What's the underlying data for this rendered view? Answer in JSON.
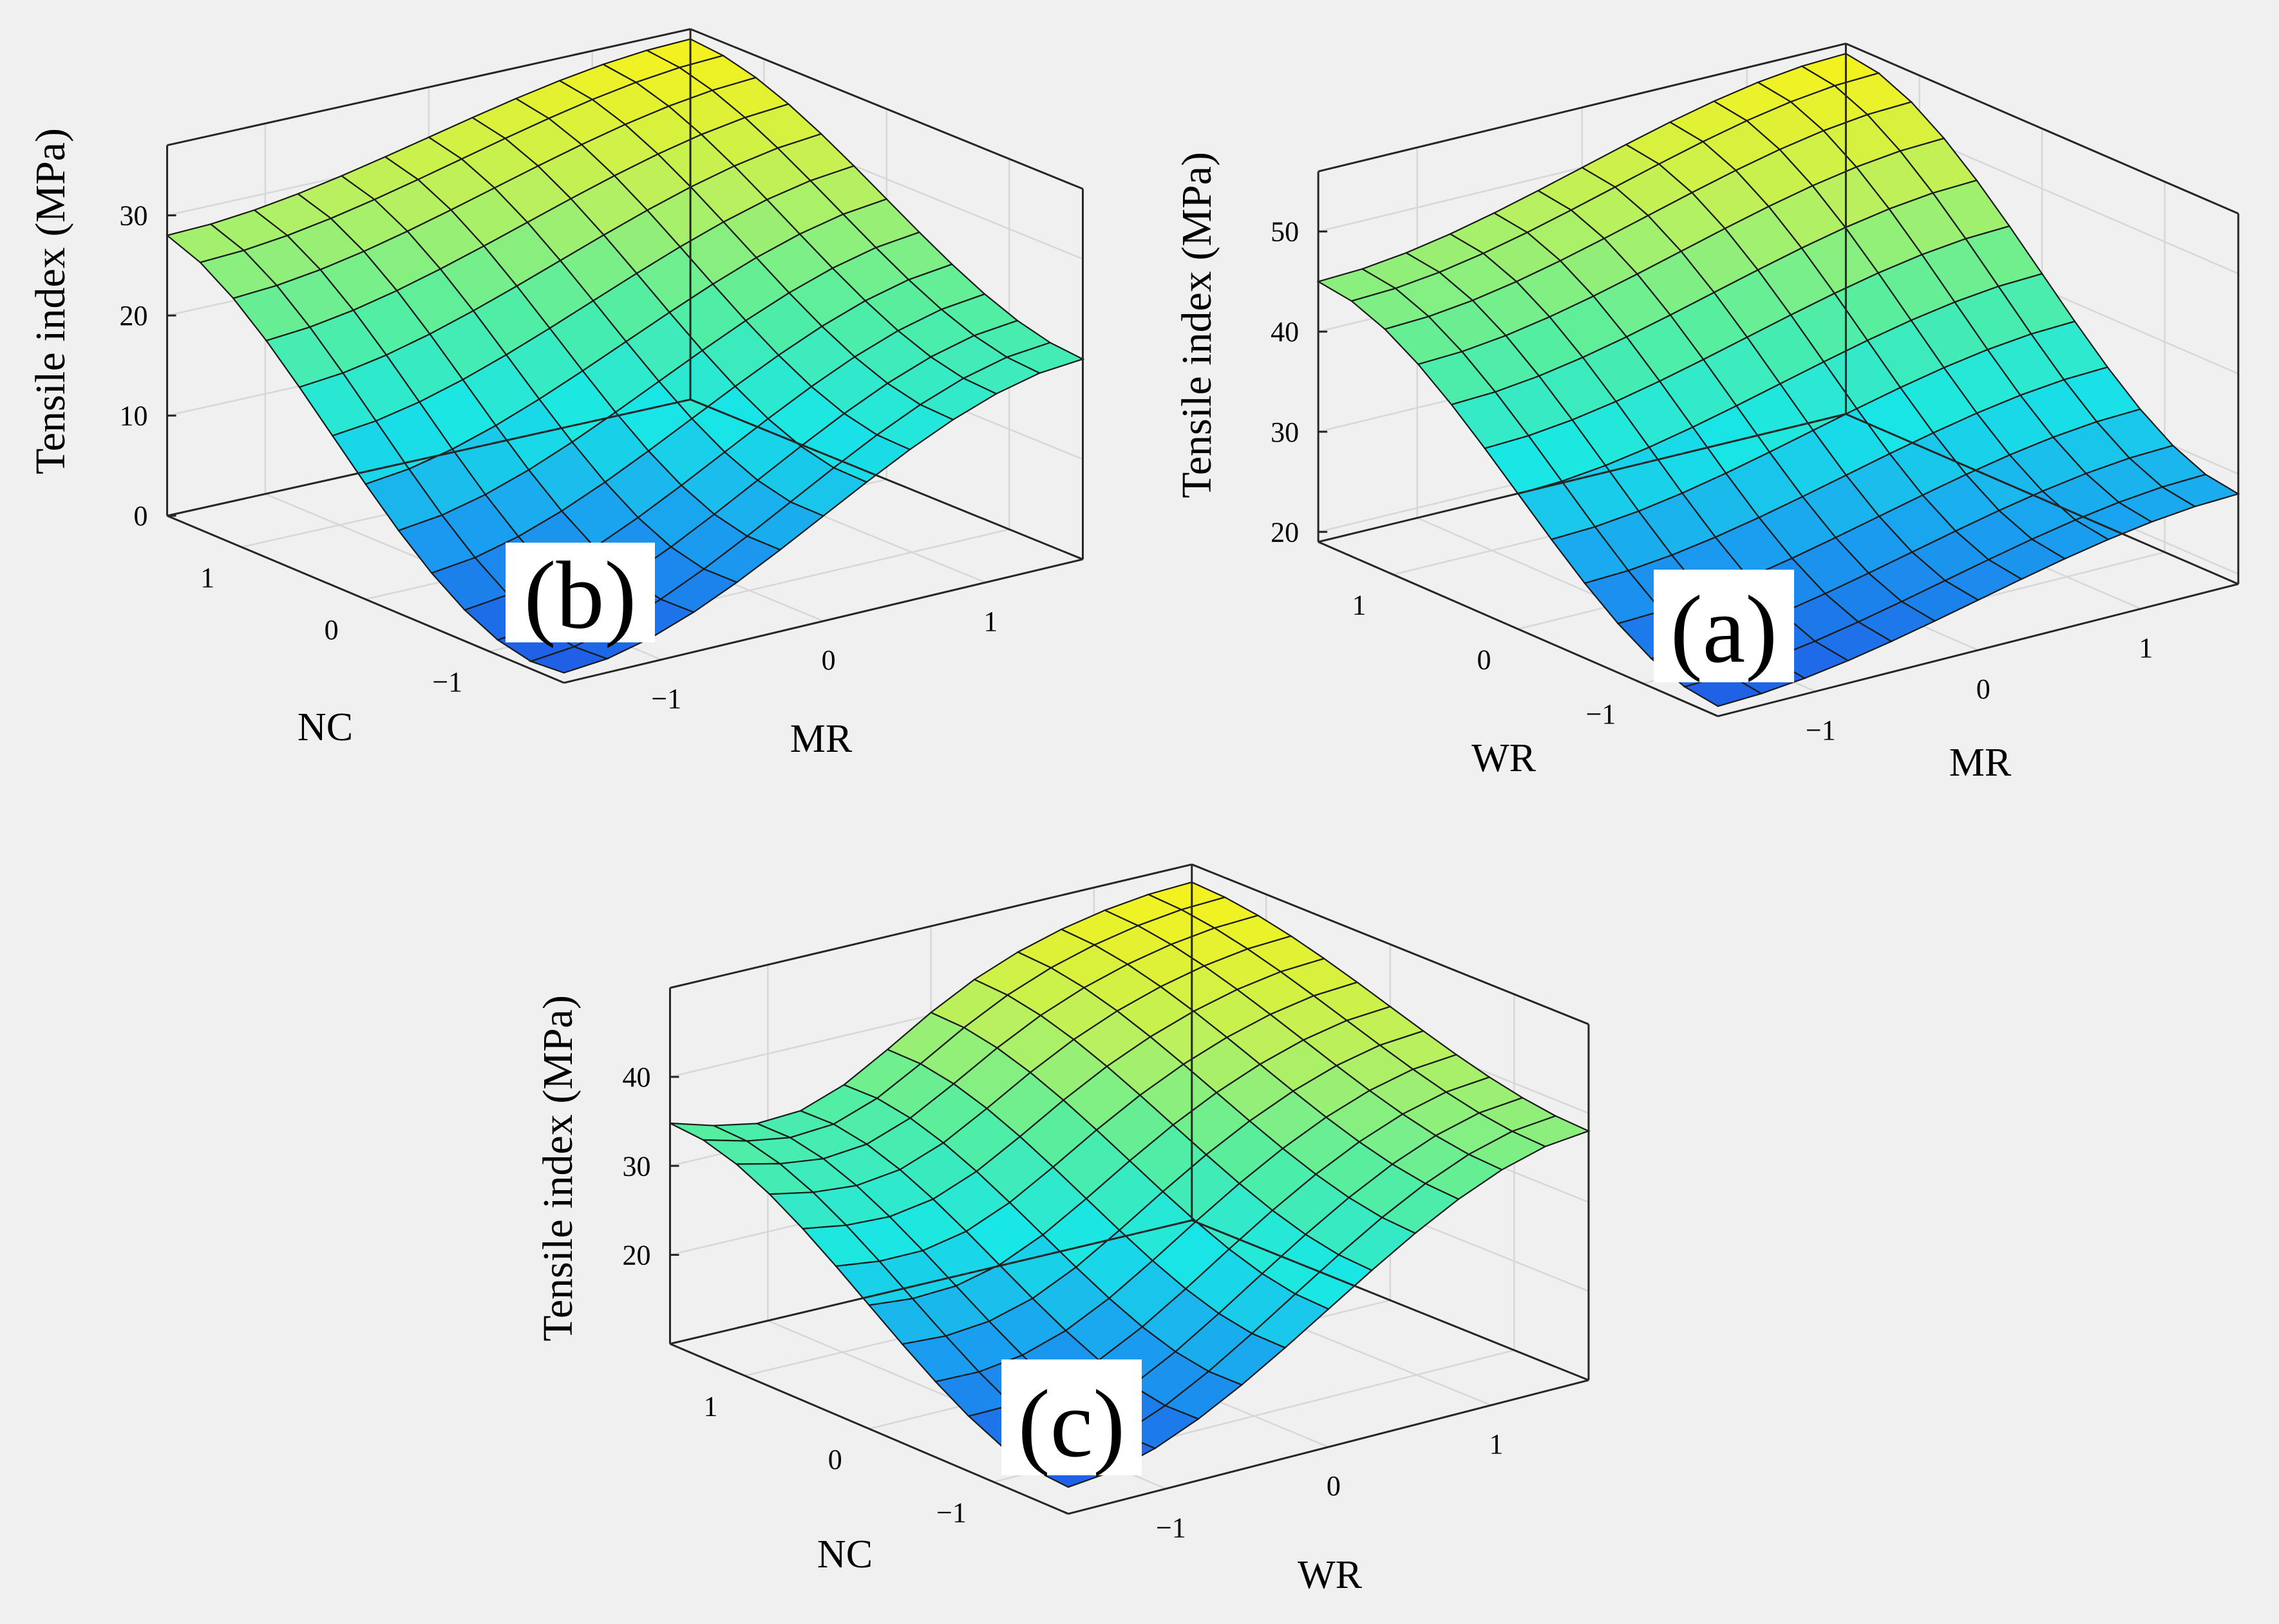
{
  "figure": {
    "background_color": "#f0f0f0",
    "grid_color": "#d7d7d7",
    "axis_color": "#262626",
    "mesh_line_color": "#1a1a1a",
    "colormap": [
      "#1f5fe6",
      "#1aa0f0",
      "#19e6e6",
      "#55eea0",
      "#b8f060",
      "#f5f21e"
    ]
  },
  "chart_data": [
    {
      "id": "b",
      "type": "surface",
      "panel_label": "(b)",
      "zlabel": "Tensile index (MPa)",
      "xlabel": "NC",
      "ylabel": "MR",
      "x_range": [
        -1.6,
        1.6
      ],
      "y_range": [
        -1.6,
        1.6
      ],
      "zlim": [
        0,
        37
      ],
      "x_ticks": [
        "1",
        "0",
        "−1"
      ],
      "x_tick_values": [
        1,
        0,
        -1
      ],
      "y_ticks": [
        "−1",
        "0",
        "1"
      ],
      "y_tick_values": [
        -1,
        0,
        1
      ],
      "z_ticks": [
        "0",
        "10",
        "20",
        "30"
      ],
      "z_tick_values": [
        0,
        10,
        20,
        30
      ],
      "corner_values": {
        "NC_high_MR_low": 28,
        "NC_low_MR_low": 1,
        "NC_high_MR_high": 36,
        "NC_low_MR_high": 20
      },
      "grid_size": 13
    },
    {
      "id": "a",
      "type": "surface",
      "panel_label": "(a)",
      "zlabel": "Tensile index (MPa)",
      "xlabel": "WR",
      "ylabel": "MR",
      "x_range": [
        -1.6,
        1.6
      ],
      "y_range": [
        -1.6,
        1.6
      ],
      "zlim": [
        19,
        56
      ],
      "x_ticks": [
        "1",
        "0",
        "−1"
      ],
      "x_tick_values": [
        1,
        0,
        -1
      ],
      "y_ticks": [
        "−1",
        "0",
        "1"
      ],
      "y_tick_values": [
        -1,
        0,
        1
      ],
      "z_ticks": [
        "20",
        "30",
        "40",
        "50"
      ],
      "z_tick_values": [
        20,
        30,
        40,
        50
      ],
      "corner_values": {
        "WR_high_MR_low": 45,
        "WR_low_MR_low": 20,
        "WR_high_MR_high": 55,
        "WR_low_MR_high": 28
      },
      "grid_size": 13
    },
    {
      "id": "c",
      "type": "surface",
      "panel_label": "(c)",
      "zlabel": "Tensile index (MPa)",
      "xlabel": "NC",
      "ylabel": "WR",
      "x_range": [
        -1.6,
        1.6
      ],
      "y_range": [
        -1.6,
        1.6
      ],
      "zlim": [
        10,
        50
      ],
      "x_ticks": [
        "1",
        "0",
        "−1"
      ],
      "x_tick_values": [
        1,
        0,
        -1
      ],
      "y_ticks": [
        "−1",
        "0",
        "1"
      ],
      "y_tick_values": [
        -1,
        0,
        1
      ],
      "z_ticks": [
        "20",
        "30",
        "40"
      ],
      "z_tick_values": [
        20,
        30,
        40
      ],
      "corner_values": {
        "NC_high_WR_low": 37,
        "NC_low_WR_low": 13,
        "NC_high_WR_high": 48,
        "NC_low_WR_high": 38
      },
      "grid_size": 13
    }
  ]
}
